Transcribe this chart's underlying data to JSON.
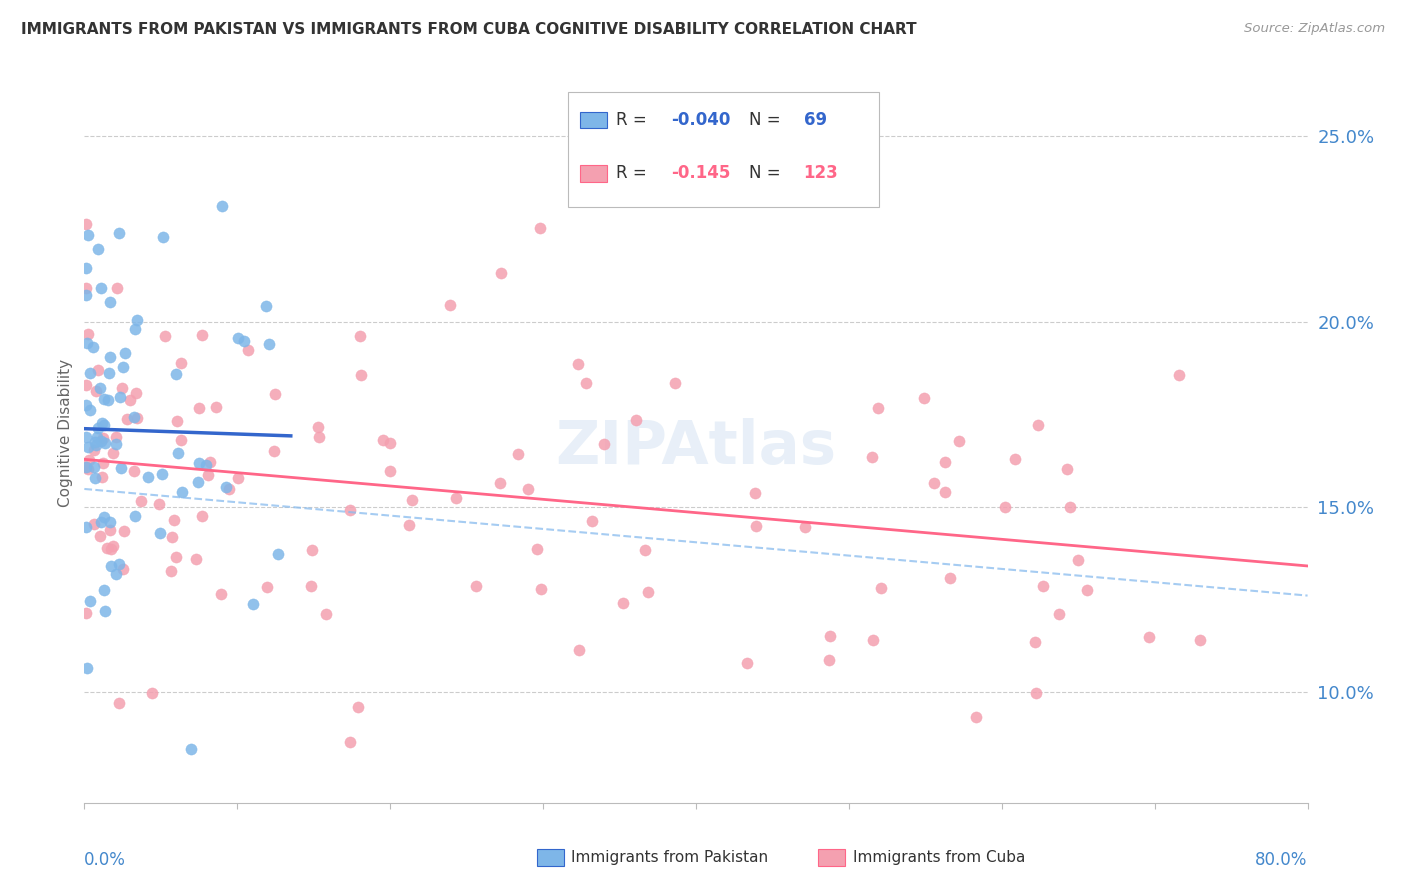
{
  "title": "IMMIGRANTS FROM PAKISTAN VS IMMIGRANTS FROM CUBA COGNITIVE DISABILITY CORRELATION CHART",
  "source": "Source: ZipAtlas.com",
  "ylabel": "Cognitive Disability",
  "right_yticks": [
    "10.0%",
    "15.0%",
    "20.0%",
    "25.0%"
  ],
  "right_ytick_vals": [
    0.1,
    0.15,
    0.2,
    0.25
  ],
  "xlim": [
    0.0,
    0.8
  ],
  "ylim": [
    0.07,
    0.27
  ],
  "watermark": "ZIPAtlas",
  "legend_pak_R": "-0.040",
  "legend_pak_N": "69",
  "legend_cuba_R": "-0.145",
  "legend_cuba_N": "123",
  "pakistan_color": "#7EB6E8",
  "cuba_color": "#F4A0B0",
  "pakistan_line_color": "#3366CC",
  "cuba_line_color": "#FF6688",
  "pakistan_dashed_color": "#88BBEE",
  "grid_color": "#CCCCCC",
  "title_color": "#333333",
  "axis_label_color": "#4488CC",
  "source_color": "#999999"
}
